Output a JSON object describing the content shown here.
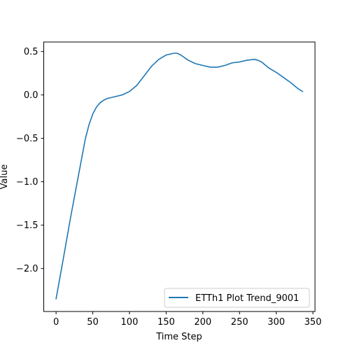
{
  "chart_data": {
    "type": "line",
    "title": "",
    "xlabel": "Time Step",
    "ylabel": "Value",
    "xlim": [
      -16.8,
      352.8
    ],
    "ylim": [
      -2.495,
      0.61
    ],
    "xticks": [
      0,
      50,
      100,
      150,
      200,
      250,
      300,
      350
    ],
    "xtick_labels": [
      "0",
      "50",
      "100",
      "150",
      "200",
      "250",
      "300",
      "350"
    ],
    "yticks": [
      -2.0,
      -1.5,
      -1.0,
      -0.5,
      0.0,
      0.5
    ],
    "ytick_labels": [
      "−2.0",
      "−1.5",
      "−1.0",
      "−0.5",
      "0.0",
      "0.5"
    ],
    "grid": false,
    "legend_position": "lower right",
    "series": [
      {
        "name": "ETTh1 Plot Trend_9001",
        "color": "#1f77b4",
        "x": [
          0,
          10,
          20,
          30,
          40,
          45,
          50,
          55,
          60,
          65,
          70,
          75,
          80,
          90,
          100,
          110,
          120,
          130,
          140,
          150,
          160,
          165,
          170,
          180,
          190,
          200,
          210,
          220,
          230,
          240,
          250,
          260,
          270,
          275,
          280,
          290,
          300,
          310,
          320,
          330,
          336
        ],
        "y": [
          -2.35,
          -1.88,
          -1.4,
          -0.95,
          -0.5,
          -0.34,
          -0.22,
          -0.14,
          -0.09,
          -0.06,
          -0.04,
          -0.03,
          -0.02,
          0.0,
          0.04,
          0.11,
          0.22,
          0.33,
          0.41,
          0.46,
          0.48,
          0.48,
          0.46,
          0.4,
          0.36,
          0.34,
          0.32,
          0.32,
          0.34,
          0.37,
          0.38,
          0.4,
          0.41,
          0.4,
          0.38,
          0.31,
          0.26,
          0.2,
          0.14,
          0.07,
          0.04
        ]
      }
    ]
  }
}
